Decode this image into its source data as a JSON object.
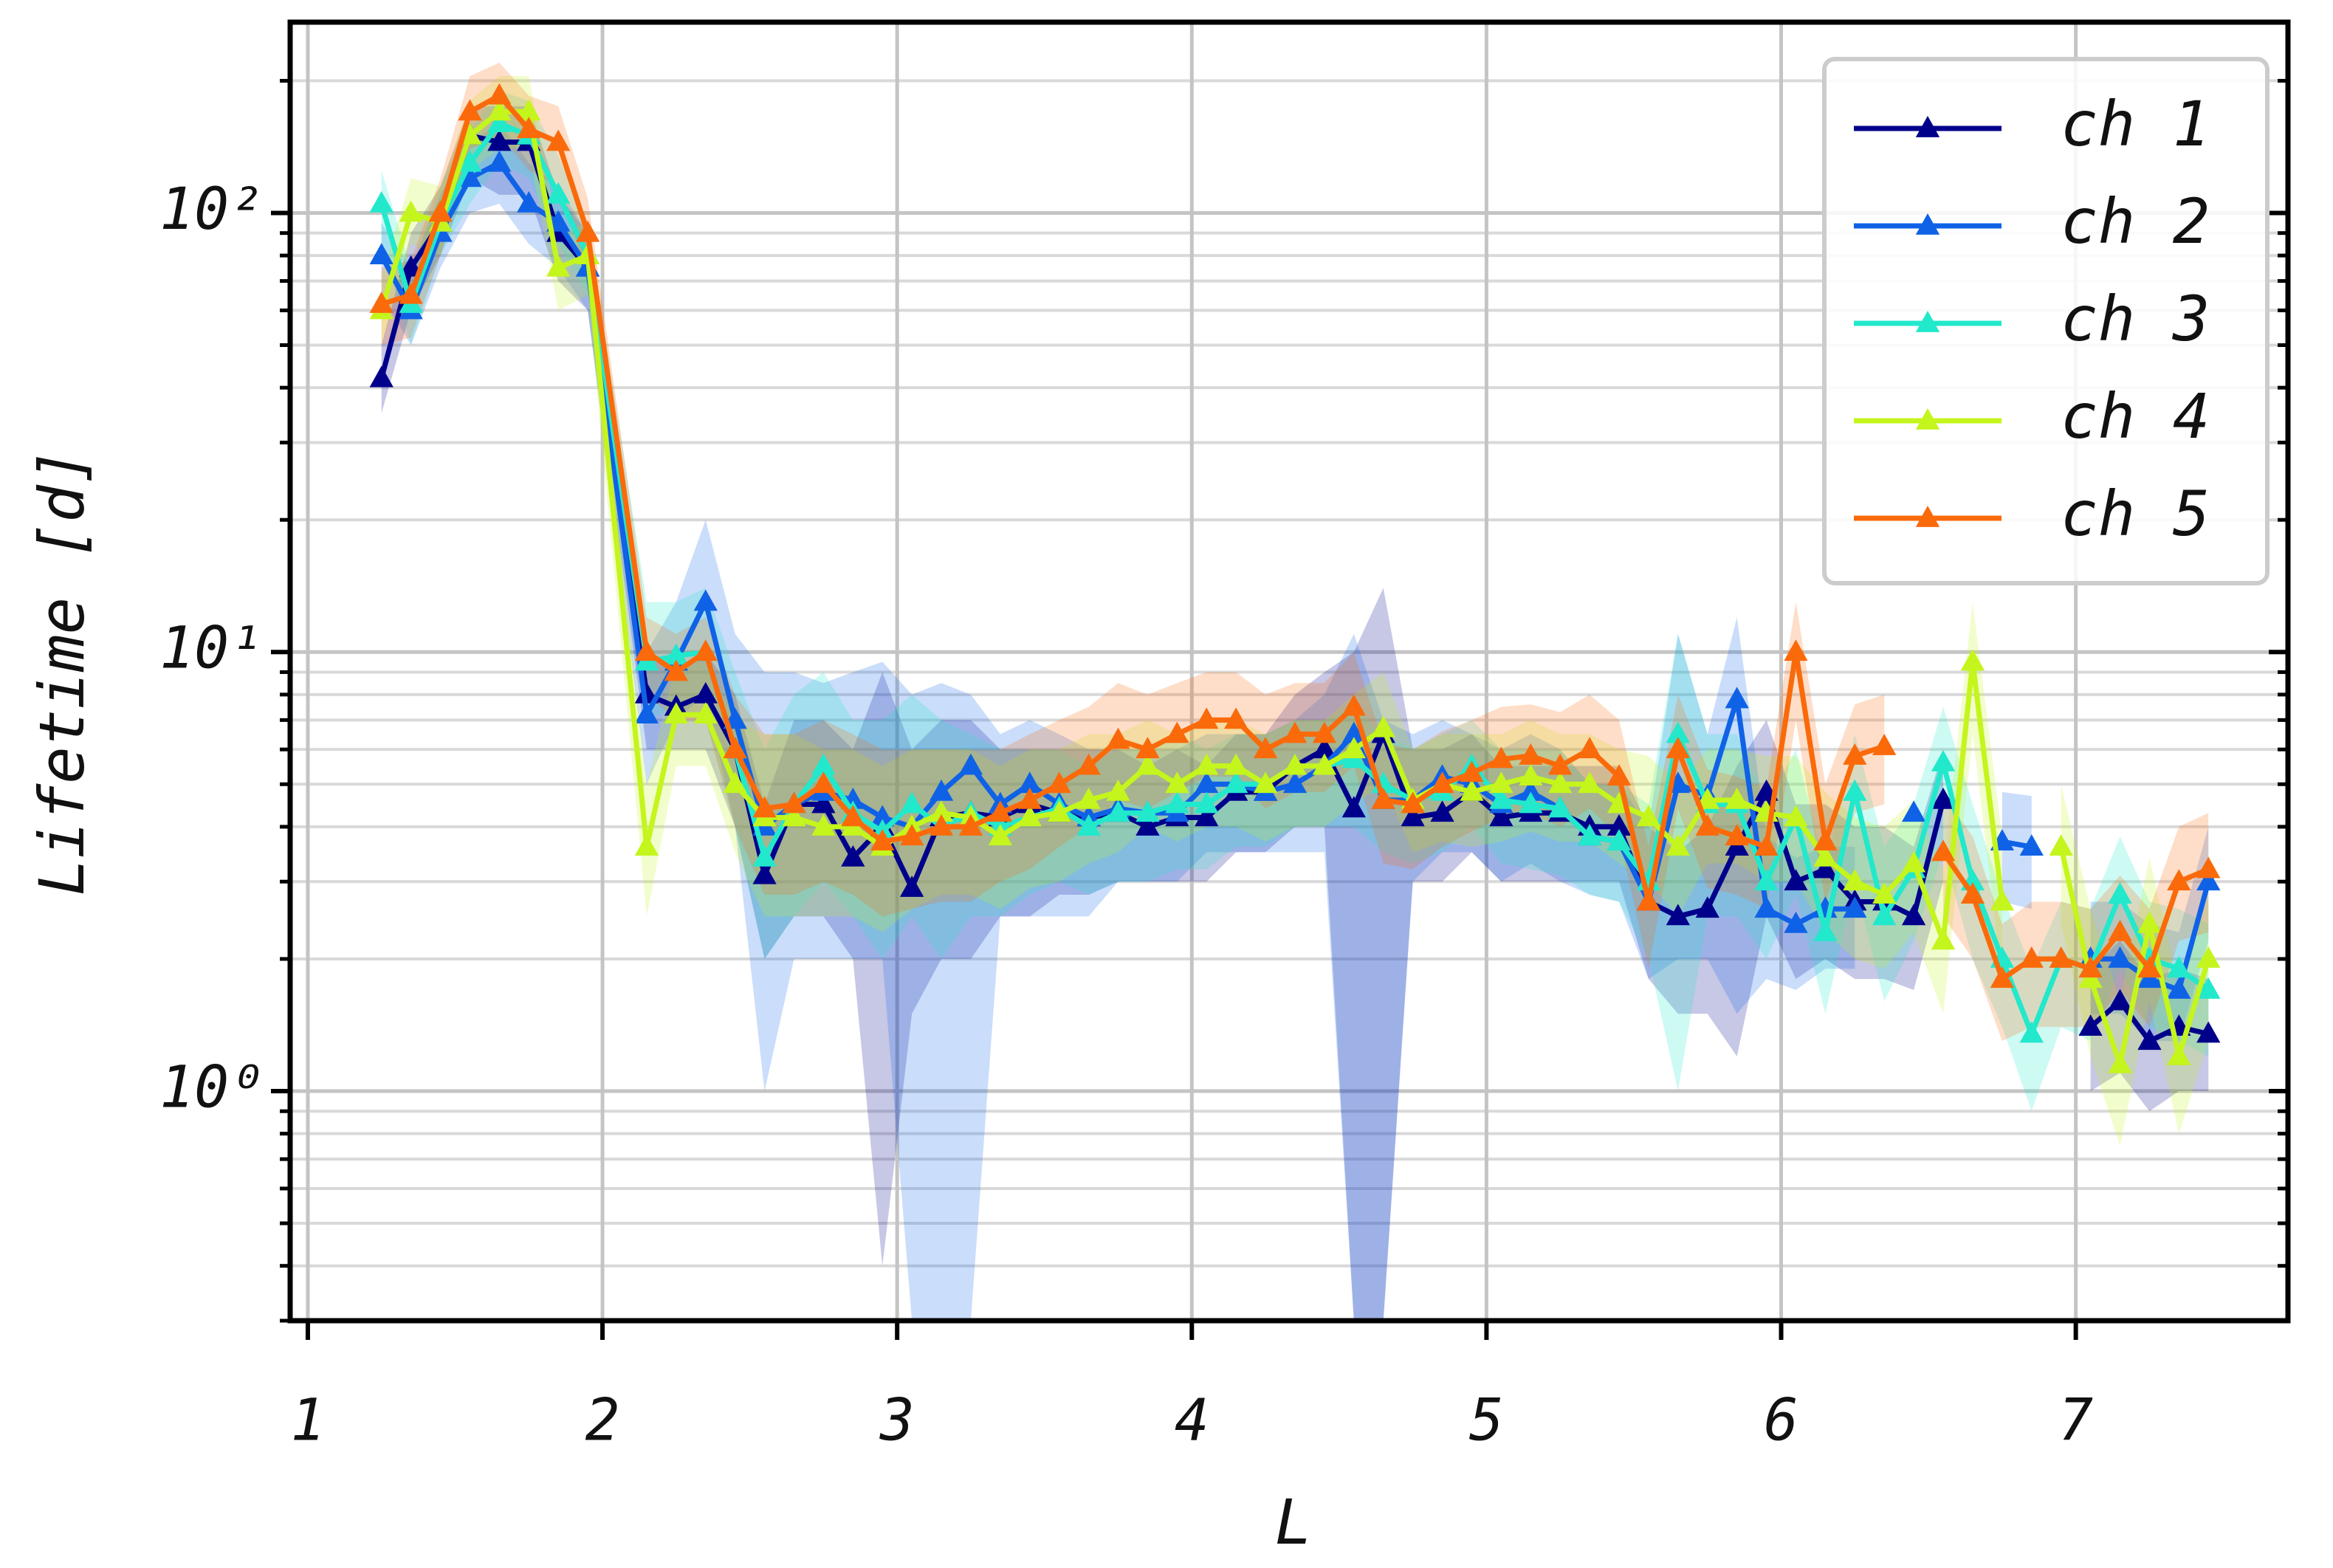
{
  "chart_data": {
    "type": "line",
    "xlabel": "L",
    "ylabel": "Lifetime [d]",
    "yscale": "log",
    "grid": true,
    "legend": "upper right",
    "marker": "triangle",
    "xlim": [
      0.94,
      7.72
    ],
    "ylim": [
      0.3,
      272
    ],
    "xticks": [
      1,
      2,
      3,
      4,
      5,
      6,
      7
    ],
    "yticks": [
      {
        "value": 1,
        "label": "10⁰"
      },
      {
        "value": 10,
        "label": "10¹"
      },
      {
        "value": 100,
        "label": "10²"
      }
    ],
    "yminorticks": [
      0.3,
      0.4,
      0.5,
      0.6,
      0.7,
      0.8,
      0.9,
      2,
      3,
      4,
      5,
      6,
      7,
      8,
      9,
      20,
      30,
      40,
      50,
      60,
      70,
      80,
      90,
      200
    ],
    "x": [
      1.25,
      1.35,
      1.45,
      1.55,
      1.65,
      1.75,
      1.85,
      1.95,
      2.15,
      2.25,
      2.35,
      2.45,
      2.55,
      2.65,
      2.75,
      2.85,
      2.95,
      3.05,
      3.15,
      3.25,
      3.35,
      3.45,
      3.55,
      3.65,
      3.75,
      3.85,
      3.95,
      4.05,
      4.15,
      4.25,
      4.35,
      4.45,
      4.55,
      4.65,
      4.75,
      4.85,
      4.95,
      5.05,
      5.15,
      5.25,
      5.35,
      5.45,
      5.55,
      5.65,
      5.75,
      5.85,
      5.95,
      6.05,
      6.15,
      6.25,
      6.35,
      6.45,
      6.55,
      6.65,
      6.75,
      6.85,
      6.95,
      7.05,
      7.15,
      7.25,
      7.35,
      7.45
    ],
    "series": [
      {
        "name": "ch 1",
        "color": "#00008b",
        "values": [
          42,
          75,
          95,
          150,
          145,
          145,
          90,
          75,
          8,
          7.5,
          8,
          6,
          3.1,
          4.5,
          4.5,
          3.4,
          4,
          2.9,
          4.2,
          4.3,
          4.2,
          4.5,
          4.3,
          4.2,
          4.3,
          4,
          4.2,
          4.2,
          4.8,
          4.8,
          5.5,
          6,
          4.4,
          6.5,
          4.2,
          4.3,
          4.8,
          4.2,
          4.3,
          4.3,
          4,
          4,
          2.7,
          2.5,
          2.6,
          3.6,
          4.8,
          3,
          3.2,
          2.7,
          2.7,
          2.5,
          4.6,
          null,
          null,
          null,
          null,
          1.4,
          1.6,
          1.3,
          1.4,
          1.35
        ],
        "lower": [
          35,
          60,
          80,
          120,
          110,
          110,
          70,
          60,
          6,
          6,
          6,
          4,
          2,
          2.5,
          2.5,
          2,
          0.4,
          1.5,
          2,
          2,
          2.5,
          2.5,
          2.8,
          2.8,
          3,
          3,
          3,
          3,
          3.5,
          3.5,
          4,
          4,
          0.3,
          0.3,
          3,
          3,
          3.5,
          3,
          3,
          3,
          3,
          3,
          1.8,
          1.5,
          1.5,
          1.2,
          2.5,
          1.8,
          2,
          1.8,
          1.8,
          1.7,
          3,
          null,
          null,
          null,
          null,
          1,
          1.1,
          0.9,
          1,
          1
        ],
        "upper": [
          50,
          90,
          115,
          175,
          175,
          175,
          110,
          90,
          10,
          9,
          10,
          8,
          4.5,
          7,
          7,
          6,
          9,
          6,
          7,
          7,
          6,
          6,
          6,
          6,
          6,
          5.5,
          6,
          5.5,
          6.5,
          6.5,
          8,
          9,
          10,
          14,
          6,
          6,
          6.5,
          5.5,
          5.5,
          5.5,
          5.5,
          5.5,
          4,
          3.5,
          4,
          5.5,
          7,
          4.5,
          4.5,
          4,
          4,
          3.6,
          6,
          null,
          null,
          null,
          null,
          1.9,
          2.2,
          1.8,
          1.9,
          1.8
        ]
      },
      {
        "name": "ch 2",
        "color": "#0f62e6",
        "values": [
          80,
          60,
          90,
          120,
          130,
          105,
          95,
          75,
          7.2,
          9.5,
          13,
          7,
          4,
          4.5,
          4.8,
          4.6,
          4.2,
          4,
          4.8,
          5.5,
          4.5,
          5,
          4.5,
          4.2,
          4.4,
          4.3,
          4.3,
          5,
          5,
          4.8,
          5,
          5.5,
          6.5,
          4.6,
          4.6,
          5.2,
          5,
          4.5,
          4.8,
          4.4,
          3.8,
          3.7,
          2.7,
          5,
          4.7,
          7.8,
          2.6,
          2.4,
          2.6,
          2.6,
          null,
          4.3,
          null,
          null,
          3.7,
          3.6,
          null,
          2,
          2,
          1.8,
          1.7,
          3
        ],
        "lower": [
          65,
          50,
          75,
          100,
          105,
          85,
          75,
          60,
          5,
          7,
          8,
          4,
          1,
          2,
          2,
          2,
          2,
          0.3,
          0.3,
          0.3,
          2.5,
          2.5,
          2.5,
          2.5,
          3,
          3,
          3,
          3.5,
          3.5,
          3.5,
          3.5,
          3.5,
          0.3,
          0.3,
          3,
          3.5,
          3.5,
          3,
          3.3,
          3,
          2.8,
          2.7,
          1.8,
          2,
          2,
          1.5,
          1.8,
          1.7,
          1.9,
          1.9,
          null,
          3,
          null,
          null,
          2.7,
          2.6,
          null,
          1.5,
          1.5,
          1.3,
          1.3,
          2.2
        ],
        "upper": [
          95,
          75,
          110,
          145,
          160,
          130,
          115,
          90,
          10,
          13,
          20,
          11,
          9,
          9,
          8.5,
          9,
          9.5,
          8,
          8.5,
          8,
          6.5,
          7,
          6.5,
          6,
          6,
          6,
          6,
          6.5,
          6.5,
          6.5,
          7,
          8,
          11,
          7,
          6.5,
          7,
          6.5,
          6,
          6.5,
          6,
          5,
          5,
          4,
          11,
          6.5,
          12,
          3.8,
          3.4,
          3.6,
          3.6,
          null,
          5.5,
          null,
          null,
          4.8,
          4.7,
          null,
          2.7,
          2.7,
          2.4,
          2.3,
          4
        ]
      },
      {
        "name": "ch 3",
        "color": "#22e8cc",
        "values": [
          105,
          62,
          95,
          130,
          160,
          150,
          110,
          80,
          9.5,
          9.8,
          10,
          6,
          3.4,
          4.5,
          5.5,
          4.3,
          3.9,
          4.5,
          4,
          4.3,
          4,
          4.2,
          4.4,
          4,
          4.3,
          4.3,
          4.5,
          4.5,
          5,
          5,
          5.5,
          5.5,
          5.7,
          5,
          4.6,
          4.8,
          5.5,
          4.6,
          4.5,
          4.4,
          3.8,
          3.7,
          3,
          6.5,
          4.5,
          4.5,
          3,
          4.2,
          2.3,
          4.8,
          2.5,
          3.2,
          5.6,
          3,
          2,
          1.35,
          2,
          1.9,
          2.8,
          2,
          1.9,
          1.7
        ],
        "lower": [
          85,
          50,
          80,
          105,
          130,
          120,
          85,
          65,
          7,
          7.5,
          7,
          4,
          2,
          2.5,
          3,
          2.5,
          2,
          2.5,
          2,
          2.5,
          2.5,
          2.8,
          3,
          2.8,
          3,
          3,
          3.2,
          3.2,
          3.6,
          3.6,
          4,
          4,
          4,
          3.5,
          3.3,
          3.5,
          4,
          3.3,
          3.2,
          3.1,
          2.8,
          2.7,
          2,
          1,
          2.5,
          2.5,
          2,
          2.8,
          1.5,
          3,
          1.6,
          2.2,
          3.5,
          2,
          1.4,
          0.9,
          1.4,
          1.3,
          1.9,
          1.4,
          1.3,
          1.2
        ],
        "upper": [
          125,
          75,
          115,
          155,
          190,
          180,
          135,
          95,
          13,
          13,
          14,
          9,
          6,
          8,
          9,
          7,
          7,
          8,
          7,
          6.5,
          6,
          6,
          6,
          5.5,
          6,
          6,
          6.5,
          6,
          6.5,
          6.5,
          7,
          7,
          7.5,
          6.5,
          6,
          6.5,
          7,
          6,
          6,
          6,
          5,
          5,
          4.5,
          11,
          6.5,
          6.5,
          4.5,
          6,
          3.2,
          6.5,
          3.6,
          4.5,
          7.5,
          4.5,
          2.8,
          1.9,
          2.7,
          2.6,
          3.8,
          2.7,
          2.6,
          2.4
        ]
      },
      {
        "name": "ch 4",
        "color": "#c4f51c",
        "values": [
          60,
          100,
          95,
          150,
          170,
          170,
          75,
          80,
          3.6,
          7.2,
          7.2,
          5,
          4.2,
          4.2,
          4,
          4,
          3.6,
          4,
          4.3,
          4.2,
          3.8,
          4.2,
          4.3,
          4.6,
          4.8,
          5.5,
          5,
          5.5,
          5.5,
          5,
          5.5,
          5.5,
          6,
          6.7,
          4.6,
          5,
          4.8,
          5,
          5.2,
          5,
          5,
          4.5,
          4.2,
          3.6,
          4.6,
          4.6,
          4.3,
          4.2,
          3.4,
          3,
          2.8,
          3.3,
          2.2,
          9.5,
          2.7,
          null,
          3.6,
          1.8,
          1.15,
          2.4,
          1.2,
          2
        ],
        "lower": [
          50,
          85,
          80,
          125,
          140,
          140,
          60,
          65,
          2.5,
          5.5,
          5.5,
          3.5,
          2.5,
          2.5,
          2.5,
          2.5,
          2.3,
          2.6,
          2.8,
          2.8,
          2.6,
          2.9,
          3,
          3.3,
          3.5,
          4,
          3.7,
          4,
          4,
          3.7,
          4,
          4,
          4.5,
          5,
          3.5,
          3.7,
          3.6,
          3.7,
          3.9,
          3.7,
          3.7,
          3.3,
          3,
          2.5,
          3.3,
          3.3,
          3,
          3,
          2.3,
          2,
          1.9,
          2.3,
          1.5,
          6.5,
          1.8,
          null,
          2.4,
          1.2,
          0.75,
          1.6,
          0.8,
          1.3
        ],
        "upper": [
          72,
          120,
          115,
          180,
          205,
          205,
          90,
          95,
          5,
          9.5,
          9.5,
          7,
          6.5,
          6.5,
          6,
          6,
          5.5,
          6,
          6,
          6,
          5.5,
          6,
          6,
          6.5,
          6.5,
          7,
          6.5,
          7,
          7,
          6.5,
          7,
          7,
          8,
          9,
          6,
          6.5,
          6.5,
          6.5,
          7,
          6.5,
          6.5,
          6,
          5.8,
          5,
          6,
          6,
          5.8,
          5.8,
          4.8,
          4.2,
          4,
          4.6,
          3.2,
          13,
          3.8,
          null,
          5,
          2.6,
          1.6,
          3.4,
          1.7,
          2.8
        ]
      },
      {
        "name": "ch 5",
        "color": "#fa6a0a",
        "values": [
          62,
          65,
          100,
          170,
          185,
          155,
          145,
          90,
          10,
          9,
          10,
          6,
          4.4,
          4.5,
          5,
          4.2,
          3.7,
          3.8,
          4,
          4,
          4.3,
          4.6,
          5,
          5.5,
          6.3,
          6,
          6.5,
          7,
          7,
          6,
          6.5,
          6.5,
          7.5,
          4.6,
          4.5,
          5,
          5.3,
          5.7,
          5.8,
          5.5,
          6,
          5.2,
          2.7,
          6,
          4,
          3.8,
          3.6,
          10,
          3.7,
          5.8,
          6.1,
          null,
          3.5,
          2.8,
          1.8,
          2,
          2,
          1.9,
          2.3,
          1.9,
          3,
          3.2
        ],
        "lower": [
          50,
          52,
          80,
          140,
          150,
          125,
          115,
          72,
          8,
          7,
          7,
          4,
          2.8,
          2.8,
          3,
          2.8,
          2.5,
          2.6,
          2.7,
          2.7,
          3,
          3.2,
          3.6,
          4,
          4.6,
          4.4,
          4.8,
          5.2,
          5.2,
          4.4,
          4.8,
          4.8,
          5.5,
          3.3,
          3.2,
          3.6,
          3.9,
          4.2,
          4.3,
          4,
          4.4,
          3.8,
          1.9,
          4.4,
          2.9,
          2.8,
          2.6,
          7,
          2.7,
          4.3,
          4.5,
          null,
          2.5,
          2,
          1.3,
          1.4,
          1.4,
          1.4,
          1.7,
          1.4,
          2.2,
          2.3
        ],
        "upper": [
          75,
          78,
          120,
          205,
          220,
          185,
          175,
          108,
          12,
          11,
          12,
          8,
          6.5,
          6.5,
          7,
          6.5,
          6,
          6,
          6,
          6,
          6,
          6.5,
          7,
          7.5,
          8.5,
          8,
          8.5,
          9,
          9,
          8,
          8.5,
          8.5,
          10,
          6.2,
          6,
          6.6,
          7,
          7.5,
          7.6,
          7.3,
          8,
          7,
          3.6,
          8,
          5.4,
          5.2,
          4.9,
          13,
          5,
          7.6,
          8,
          null,
          4.7,
          3.8,
          2.4,
          2.7,
          2.7,
          2.6,
          3.1,
          2.6,
          4,
          4.3
        ]
      }
    ]
  }
}
